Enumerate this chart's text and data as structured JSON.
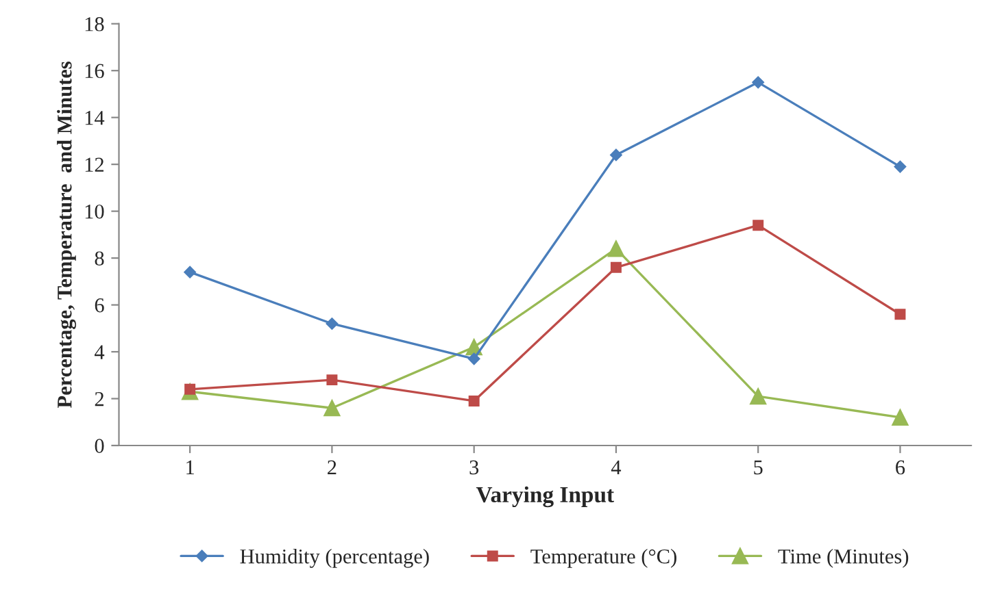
{
  "chart_data": {
    "type": "line",
    "xlabel": "Varying Input",
    "ylabel": "Percentage, Temperature  and Minutes",
    "categories": [
      "1",
      "2",
      "3",
      "4",
      "5",
      "6"
    ],
    "series": [
      {
        "name": "Humidity (percentage)",
        "color": "#4a7ebb",
        "marker": "diamond",
        "values": [
          7.4,
          5.2,
          3.7,
          12.4,
          15.5,
          11.9
        ]
      },
      {
        "name": "Temperature (°C)",
        "color": "#be4b48",
        "marker": "square",
        "values": [
          2.4,
          2.8,
          1.9,
          7.6,
          9.4,
          5.6
        ]
      },
      {
        "name": "Time (Minutes)",
        "color": "#98b954",
        "marker": "triangle",
        "values": [
          2.3,
          1.6,
          4.2,
          8.4,
          2.1,
          1.2
        ]
      }
    ],
    "ylim": [
      0,
      18
    ],
    "yticks": [
      0,
      2,
      4,
      6,
      8,
      10,
      12,
      14,
      16,
      18
    ],
    "grid": false,
    "legend": "bottom",
    "line_style": "solid"
  }
}
